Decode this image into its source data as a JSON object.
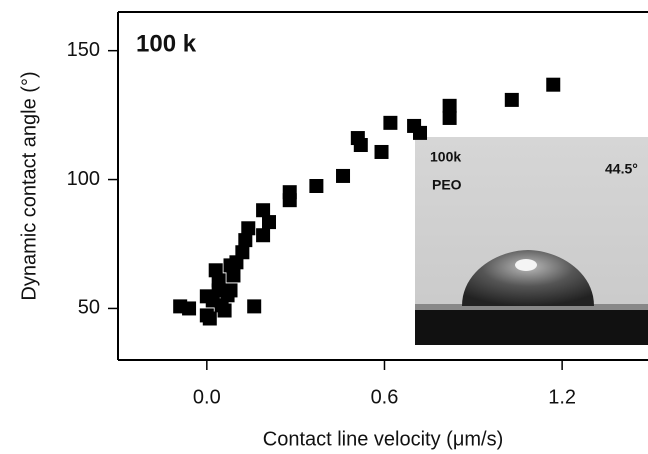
{
  "chart_data": {
    "type": "scatter",
    "annotation": "100 k",
    "x_label": "Contact line velocity (μm/s)",
    "y_label": "Dynamic contact angle (°)",
    "inset": {
      "label_line1": "100k",
      "label_line2": "PEO",
      "angle": "44.5°"
    },
    "xlim": [
      -0.3,
      1.49
    ],
    "ylim": [
      30,
      165
    ],
    "xticks": [
      {
        "value": 0,
        "label": "0.0"
      },
      {
        "value": 0.6,
        "label": "0.6"
      },
      {
        "value": 1.2,
        "label": "1.2"
      }
    ],
    "yticks": [
      50,
      100,
      150
    ],
    "color": "#000000",
    "x": [
      -0.09,
      -0.06,
      0.0,
      0.0,
      0.01,
      0.02,
      0.03,
      0.04,
      0.04,
      0.05,
      0.06,
      0.07,
      0.08,
      0.08,
      0.09,
      0.1,
      0.12,
      0.13,
      0.14,
      0.16,
      0.19,
      0.19,
      0.21,
      0.28,
      0.28,
      0.37,
      0.46,
      0.51,
      0.52,
      0.59,
      0.62,
      0.7,
      0.72,
      0.82,
      0.82,
      1.03,
      1.17
    ],
    "values": [
      50.8,
      50,
      54.7,
      47.3,
      46.1,
      53.1,
      64.8,
      57.0,
      60.9,
      51.2,
      49.2,
      55.1,
      66.7,
      57.0,
      62.8,
      67.9,
      71.8,
      76.5,
      81.1,
      50.8,
      88.1,
      78.4,
      83.5,
      92.0,
      95.1,
      97.5,
      101.4,
      116.1,
      113.4,
      110.7,
      122.0,
      120.8,
      118.1,
      128.6,
      123.9,
      130.9,
      136.8
    ]
  }
}
